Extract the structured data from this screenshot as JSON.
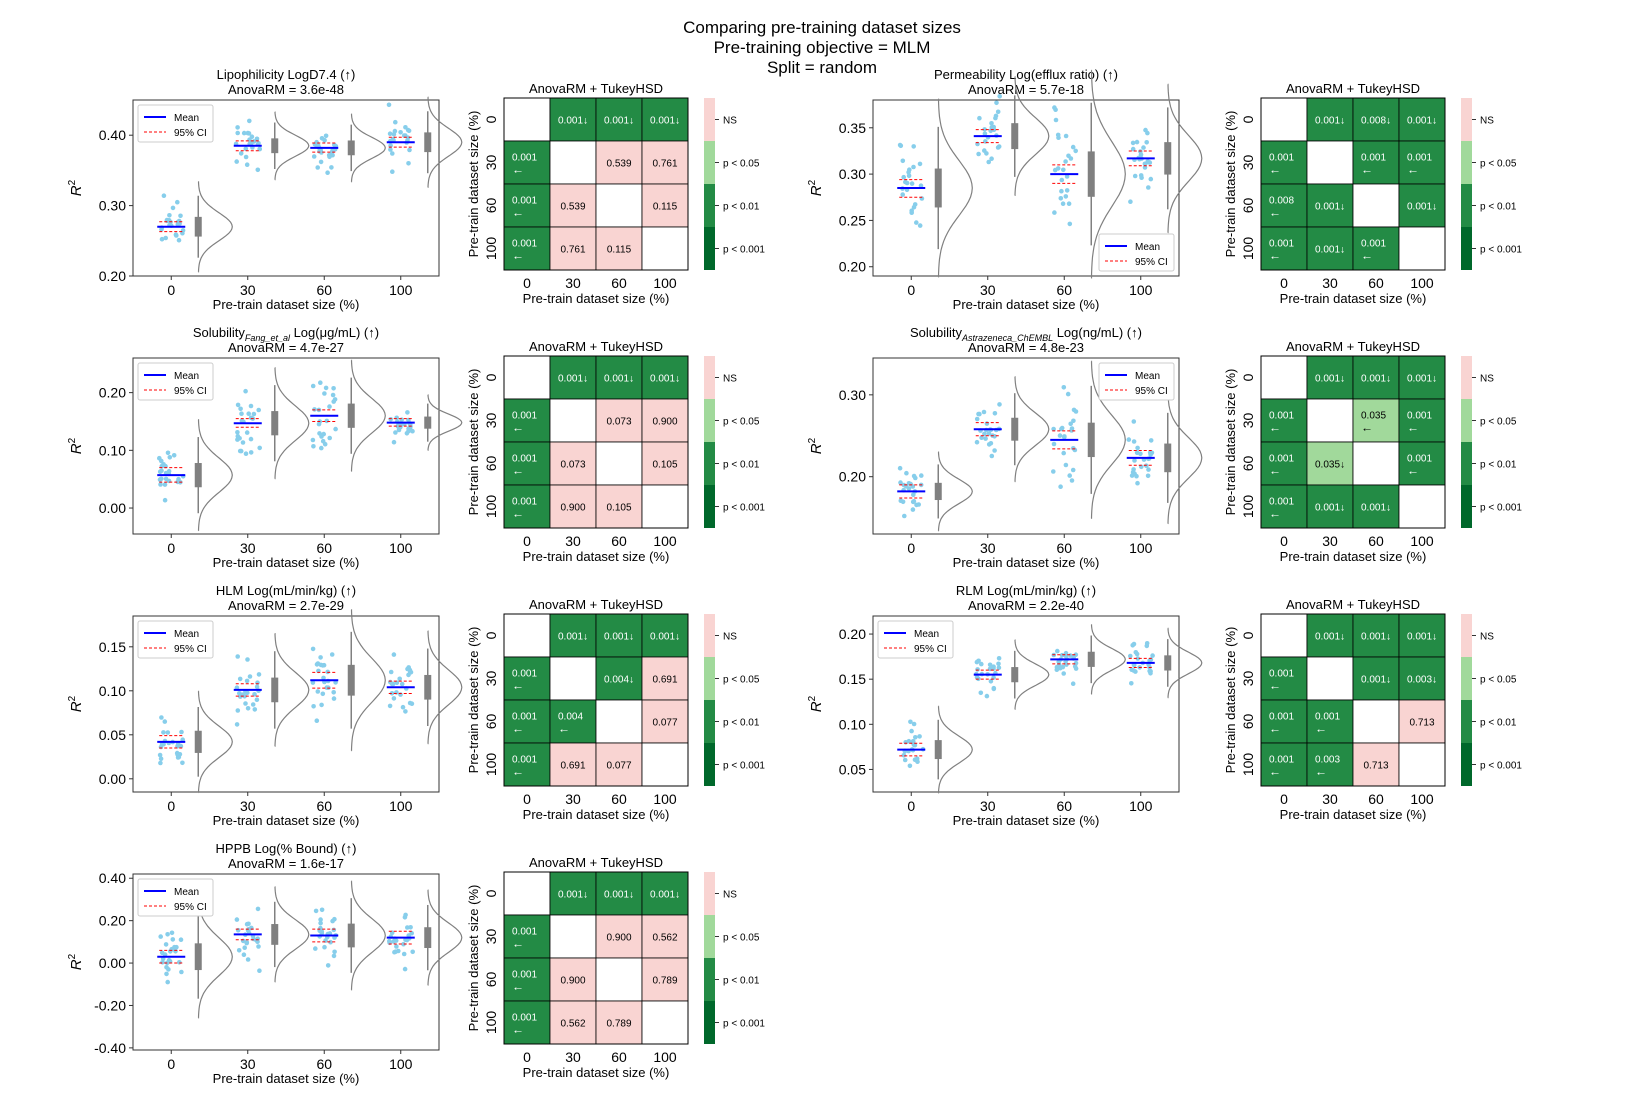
{
  "figure": {
    "title": "Comparing pre-training dataset sizes",
    "subtitle_objective": "Pre-training objective =  MLM",
    "subtitle_split": "Split = random"
  },
  "colors": {
    "mean": "#0000ff",
    "ci": "#ff0000",
    "points": "#87ceeb",
    "violin": "#808080",
    "ns": "#f9d4d2",
    "p05": "#a1d99b",
    "p01": "#238b45",
    "p001": "#00682b"
  },
  "legend_labels": {
    "mean": "Mean",
    "ci": "95% CI",
    "ns": "NS",
    "p05": "p < 0.05",
    "p01": "p < 0.01",
    "p001": "p < 0.001"
  },
  "chart_data": [
    {
      "type": "violin-strip",
      "title": "Lipophilicity LogD7.4 (↑)",
      "anova": "AnovaRM = 3.6e-48",
      "xlabel": "Pre-train dataset size (%)",
      "ylabel": "R²",
      "categories": [
        "0",
        "30",
        "60",
        "100"
      ],
      "ylim": [
        0.2,
        0.45
      ],
      "yticks": [
        0.2,
        0.3,
        0.4
      ],
      "ytick_labels": [
        "0.20",
        "0.30",
        "0.40"
      ],
      "means": [
        0.27,
        0.385,
        0.382,
        0.39
      ],
      "ci": [
        [
          0.263,
          0.277
        ],
        [
          0.378,
          0.392
        ],
        [
          0.376,
          0.389
        ],
        [
          0.383,
          0.397
        ]
      ],
      "spread": [
        0.02,
        0.015,
        0.015,
        0.02
      ],
      "legend_position": "upper-left"
    },
    {
      "type": "heatmap",
      "title": "AnovaRM + TukeyHSD",
      "xlabel": "Pre-train dataset size (%)",
      "ylabel": "Pre-train dataset size (%)",
      "categories": [
        "0",
        "30",
        "60",
        "100"
      ],
      "cells": [
        [
          "",
          "0.001↓",
          "0.001↓",
          "0.001↓"
        ],
        [
          "0.001\n←",
          "",
          "0.539",
          "0.761"
        ],
        [
          "0.001\n←",
          "0.539",
          "",
          "0.115"
        ],
        [
          "0.001\n←",
          "0.761",
          "0.115",
          ""
        ]
      ]
    },
    {
      "type": "violin-strip",
      "title": "Permeability Log(efflux ratio) (↑)",
      "anova": "AnovaRM = 5.7e-18",
      "xlabel": "Pre-train dataset size (%)",
      "ylabel": "R²",
      "categories": [
        "0",
        "30",
        "60",
        "100"
      ],
      "ylim": [
        0.19,
        0.38
      ],
      "yticks": [
        0.2,
        0.25,
        0.3,
        0.35
      ],
      "ytick_labels": [
        "0.20",
        "0.25",
        "0.30",
        "0.35"
      ],
      "means": [
        0.285,
        0.341,
        0.3,
        0.317
      ],
      "ci": [
        [
          0.275,
          0.294
        ],
        [
          0.334,
          0.348
        ],
        [
          0.29,
          0.31
        ],
        [
          0.309,
          0.325
        ]
      ],
      "spread": [
        0.03,
        0.02,
        0.035,
        0.025
      ],
      "legend_position": "lower-right"
    },
    {
      "type": "heatmap",
      "title": "AnovaRM + TukeyHSD",
      "xlabel": "Pre-train dataset size (%)",
      "ylabel": "Pre-train dataset size (%)",
      "categories": [
        "0",
        "30",
        "60",
        "100"
      ],
      "cells": [
        [
          "",
          "0.001↓",
          "0.008↓",
          "0.001↓"
        ],
        [
          "0.001\n←",
          "",
          "0.001\n←",
          "0.001\n←"
        ],
        [
          "0.008\n←",
          "0.001↓",
          "",
          "0.001↓"
        ],
        [
          "0.001\n←",
          "0.001↓",
          "0.001\n←",
          ""
        ]
      ]
    },
    {
      "type": "violin-strip",
      "title": "Solubility_Fang_et_al Log(μg/mL) (↑)",
      "title_main": "Solubility",
      "title_sub": "Fang_et_al",
      "title_rest": " Log(μg/mL) (↑)",
      "anova": "AnovaRM = 4.7e-27",
      "xlabel": "Pre-train dataset size (%)",
      "ylabel": "R²",
      "categories": [
        "0",
        "30",
        "60",
        "100"
      ],
      "ylim": [
        -0.045,
        0.26
      ],
      "yticks": [
        0.0,
        0.1,
        0.2
      ],
      "ytick_labels": [
        "0.00",
        "0.10",
        "0.20"
      ],
      "means": [
        0.057,
        0.147,
        0.16,
        0.148
      ],
      "ci": [
        [
          0.045,
          0.07
        ],
        [
          0.14,
          0.155
        ],
        [
          0.15,
          0.17
        ],
        [
          0.142,
          0.155
        ]
      ],
      "spread": [
        0.03,
        0.03,
        0.03,
        0.015
      ],
      "legend_position": "upper-left"
    },
    {
      "type": "heatmap",
      "title": "AnovaRM + TukeyHSD",
      "xlabel": "Pre-train dataset size (%)",
      "ylabel": "Pre-train dataset size (%)",
      "categories": [
        "0",
        "30",
        "60",
        "100"
      ],
      "cells": [
        [
          "",
          "0.001↓",
          "0.001↓",
          "0.001↓"
        ],
        [
          "0.001\n←",
          "",
          "0.073",
          "0.900"
        ],
        [
          "0.001\n←",
          "0.073",
          "",
          "0.105"
        ],
        [
          "0.001\n←",
          "0.900",
          "0.105",
          ""
        ]
      ]
    },
    {
      "type": "violin-strip",
      "title": "Solubility_Astrazeneca_ChEMBL Log(ng/mL) (↑)",
      "title_main": "Solubility",
      "title_sub": "Astrazeneca_ChEMBL",
      "title_rest": " Log(ng/mL) (↑)",
      "anova": "AnovaRM = 4.8e-23",
      "xlabel": "Pre-train dataset size (%)",
      "ylabel": "R²",
      "categories": [
        "0",
        "30",
        "60",
        "100"
      ],
      "ylim": [
        0.13,
        0.345
      ],
      "yticks": [
        0.2,
        0.3
      ],
      "ytick_labels": [
        "0.20",
        "0.30"
      ],
      "means": [
        0.182,
        0.258,
        0.245,
        0.223
      ],
      "ci": [
        [
          0.174,
          0.19
        ],
        [
          0.25,
          0.266
        ],
        [
          0.234,
          0.256
        ],
        [
          0.214,
          0.232
        ]
      ],
      "spread": [
        0.015,
        0.02,
        0.03,
        0.025
      ],
      "legend_position": "upper-right"
    },
    {
      "type": "heatmap",
      "title": "AnovaRM + TukeyHSD",
      "xlabel": "Pre-train dataset size (%)",
      "ylabel": "Pre-train dataset size (%)",
      "categories": [
        "0",
        "30",
        "60",
        "100"
      ],
      "cells": [
        [
          "",
          "0.001↓",
          "0.001↓",
          "0.001↓"
        ],
        [
          "0.001\n←",
          "",
          "0.035\n←",
          "0.001\n←"
        ],
        [
          "0.001\n←",
          "0.035↓",
          "",
          "0.001\n←"
        ],
        [
          "0.001\n←",
          "0.001↓",
          "0.001↓",
          ""
        ]
      ]
    },
    {
      "type": "violin-strip",
      "title": "HLM Log(mL/min/kg) (↑)",
      "anova": "AnovaRM = 2.7e-29",
      "xlabel": "Pre-train dataset size (%)",
      "ylabel": "R²",
      "categories": [
        "0",
        "30",
        "60",
        "100"
      ],
      "ylim": [
        -0.015,
        0.185
      ],
      "yticks": [
        0.0,
        0.05,
        0.1,
        0.15
      ],
      "ytick_labels": [
        "0.00",
        "0.05",
        "0.10",
        "0.15"
      ],
      "means": [
        0.042,
        0.101,
        0.112,
        0.104
      ],
      "ci": [
        [
          0.035,
          0.049
        ],
        [
          0.094,
          0.108
        ],
        [
          0.103,
          0.121
        ],
        [
          0.097,
          0.111
        ]
      ],
      "spread": [
        0.018,
        0.02,
        0.025,
        0.02
      ],
      "legend_position": "upper-left"
    },
    {
      "type": "heatmap",
      "title": "AnovaRM + TukeyHSD",
      "xlabel": "Pre-train dataset size (%)",
      "ylabel": "Pre-train dataset size (%)",
      "categories": [
        "0",
        "30",
        "60",
        "100"
      ],
      "cells": [
        [
          "",
          "0.001↓",
          "0.001↓",
          "0.001↓"
        ],
        [
          "0.001\n←",
          "",
          "0.004↓",
          "0.691"
        ],
        [
          "0.001\n←",
          "0.004\n←",
          "",
          "0.077"
        ],
        [
          "0.001\n←",
          "0.691",
          "0.077",
          ""
        ]
      ]
    },
    {
      "type": "violin-strip",
      "title": "RLM Log(mL/min/kg) (↑)",
      "anova": "AnovaRM = 2.2e-40",
      "xlabel": "Pre-train dataset size (%)",
      "ylabel": "R²",
      "categories": [
        "0",
        "30",
        "60",
        "100"
      ],
      "ylim": [
        0.025,
        0.22
      ],
      "yticks": [
        0.05,
        0.1,
        0.15,
        0.2
      ],
      "ytick_labels": [
        "0.05",
        "0.10",
        "0.15",
        "0.20"
      ],
      "means": [
        0.072,
        0.155,
        0.172,
        0.168
      ],
      "ci": [
        [
          0.065,
          0.079
        ],
        [
          0.15,
          0.16
        ],
        [
          0.167,
          0.177
        ],
        [
          0.163,
          0.173
        ]
      ],
      "spread": [
        0.015,
        0.012,
        0.012,
        0.012
      ],
      "legend_position": "upper-left"
    },
    {
      "type": "heatmap",
      "title": "AnovaRM + TukeyHSD",
      "xlabel": "Pre-train dataset size (%)",
      "ylabel": "Pre-train dataset size (%)",
      "categories": [
        "0",
        "30",
        "60",
        "100"
      ],
      "cells": [
        [
          "",
          "0.001↓",
          "0.001↓",
          "0.001↓"
        ],
        [
          "0.001\n←",
          "",
          "0.001↓",
          "0.003↓"
        ],
        [
          "0.001\n←",
          "0.001\n←",
          "",
          "0.713"
        ],
        [
          "0.001\n←",
          "0.003\n←",
          "0.713",
          ""
        ]
      ]
    },
    {
      "type": "violin-strip",
      "title": "HPPB Log(% Bound) (↑)",
      "anova": "AnovaRM = 1.6e-17",
      "xlabel": "Pre-train dataset size (%)",
      "ylabel": "R²",
      "categories": [
        "0",
        "30",
        "60",
        "100"
      ],
      "ylim": [
        -0.41,
        0.42
      ],
      "yticks": [
        -0.4,
        -0.2,
        0.0,
        0.2,
        0.4
      ],
      "ytick_labels": [
        "-0.40",
        "-0.20",
        "0.00",
        "0.20",
        "0.40"
      ],
      "means": [
        0.03,
        0.135,
        0.13,
        0.12
      ],
      "ci": [
        [
          0.0,
          0.06
        ],
        [
          0.11,
          0.16
        ],
        [
          0.1,
          0.16
        ],
        [
          0.09,
          0.15
        ]
      ],
      "spread": [
        0.09,
        0.07,
        0.08,
        0.07
      ],
      "legend_position": "upper-left"
    },
    {
      "type": "heatmap",
      "title": "AnovaRM + TukeyHSD",
      "xlabel": "Pre-train dataset size (%)",
      "ylabel": "Pre-train dataset size (%)",
      "categories": [
        "0",
        "30",
        "60",
        "100"
      ],
      "cells": [
        [
          "",
          "0.001↓",
          "0.001↓",
          "0.001↓"
        ],
        [
          "0.001\n←",
          "",
          "0.900",
          "0.562"
        ],
        [
          "0.001\n←",
          "0.900",
          "",
          "0.789"
        ],
        [
          "0.001\n←",
          "0.562",
          "0.789",
          ""
        ]
      ]
    }
  ]
}
